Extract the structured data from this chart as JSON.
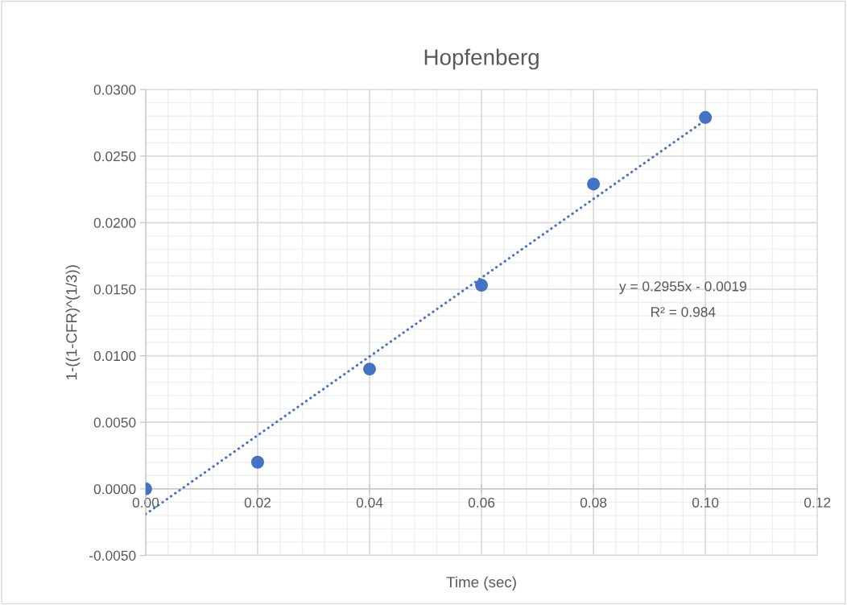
{
  "chart_data": {
    "type": "scatter",
    "title": "Hopfenberg",
    "xlabel": "Time (sec)",
    "ylabel": "1-((1-CFR)^(1/3))",
    "series": [
      {
        "color": "#4472c4",
        "marker": "circle",
        "x": [
          0,
          0.02,
          0.04,
          0.06,
          0.08,
          0.1
        ],
        "values": [
          0.0,
          0.002,
          0.009,
          0.0153,
          0.0229,
          0.0279
        ]
      },
      {
        "type": "line",
        "color": "#4472c4",
        "marker": "none",
        "line_style": "dotted",
        "x": [
          0,
          0.1
        ],
        "values": [
          -0.0019,
          0.0277
        ]
      }
    ],
    "xlim": [
      0,
      0.12
    ],
    "xticks": [
      {
        "value": 0,
        "label": "0.00"
      },
      {
        "value": 0.02,
        "label": "0.02"
      },
      {
        "value": 0.04,
        "label": "0.04"
      },
      {
        "value": 0.06,
        "label": "0.06"
      },
      {
        "value": 0.08,
        "label": "0.08"
      },
      {
        "value": 0.1,
        "label": "0.10"
      },
      {
        "value": 0.12,
        "label": "0.12"
      }
    ],
    "ylim": [
      -0.005,
      0.03
    ],
    "yticks": [
      {
        "value": -0.005,
        "label": "-0.0050"
      },
      {
        "value": 0,
        "label": "0.0000"
      },
      {
        "value": 0.005,
        "label": "0.0050"
      },
      {
        "value": 0.01,
        "label": "0.0100"
      },
      {
        "value": 0.015,
        "label": "0.0150"
      },
      {
        "value": 0.02,
        "label": "0.0200"
      },
      {
        "value": 0.025,
        "label": "0.0250"
      },
      {
        "value": 0.03,
        "label": "0.0300"
      }
    ],
    "grid": true,
    "annotations": [
      "y = 0.2955x - 0.0019",
      "R² = 0.984"
    ]
  }
}
